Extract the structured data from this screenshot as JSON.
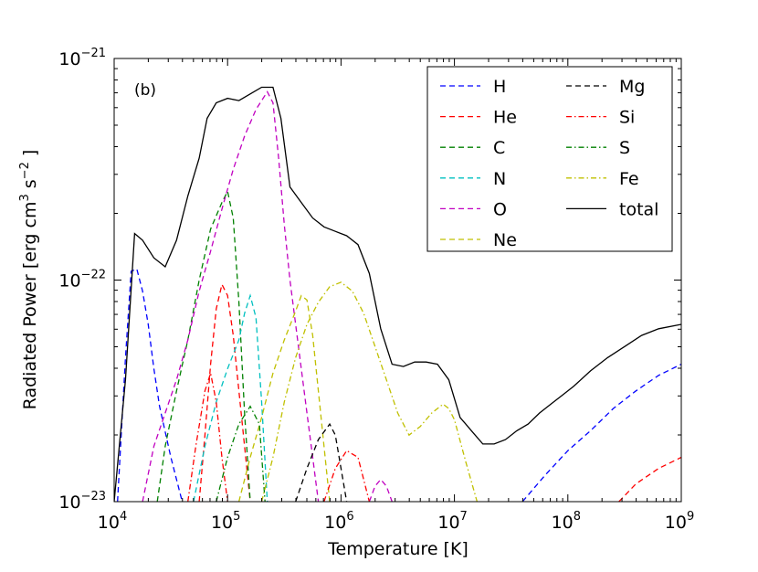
{
  "chart_data": {
    "type": "line",
    "panel_label": "(b)",
    "xlabel": "Temperature [K]",
    "ylabel": {
      "prefix": "Radiated Power [erg cm",
      "exp1": "3",
      "mid": " s",
      "exp2": "−2",
      "suffix": " ]"
    },
    "xscale": "log",
    "yscale": "log",
    "xlim": [
      10000,
      1000000000
    ],
    "ylim": [
      1e-23,
      1e-21
    ],
    "xticks": [
      {
        "base": "10",
        "exp": "4",
        "value": 10000
      },
      {
        "base": "10",
        "exp": "5",
        "value": 100000
      },
      {
        "base": "10",
        "exp": "6",
        "value": 1000000
      },
      {
        "base": "10",
        "exp": "7",
        "value": 10000000
      },
      {
        "base": "10",
        "exp": "8",
        "value": 100000000
      },
      {
        "base": "10",
        "exp": "9",
        "value": 1000000000
      }
    ],
    "yticks": [
      {
        "base": "10",
        "exp": "−23",
        "value": 1e-23
      },
      {
        "base": "10",
        "exp": "−22",
        "value": 1e-22
      },
      {
        "base": "10",
        "exp": "−21",
        "value": 1e-21
      }
    ],
    "legend_position": "top-right",
    "series": [
      {
        "name": "H",
        "color": "#0000ff",
        "style": "dashed",
        "points": [
          [
            4.03,
            -23.0
          ],
          [
            4.1,
            -22.35
          ],
          [
            4.15,
            -21.96
          ],
          [
            4.2,
            -21.95
          ],
          [
            4.25,
            -22.05
          ],
          [
            4.3,
            -22.2
          ],
          [
            4.35,
            -22.4
          ],
          [
            4.4,
            -22.57
          ],
          [
            4.5,
            -22.8
          ],
          [
            4.6,
            -23.0
          ]
        ]
      },
      {
        "name": "H",
        "color": "#0000ff",
        "style": "dashed",
        "points": [
          [
            7.6,
            -23.0
          ],
          [
            7.8,
            -22.88
          ],
          [
            8.0,
            -22.77
          ],
          [
            8.2,
            -22.68
          ],
          [
            8.4,
            -22.58
          ],
          [
            8.6,
            -22.5
          ],
          [
            8.8,
            -22.43
          ],
          [
            9.0,
            -22.38
          ]
        ]
      },
      {
        "name": "He",
        "color": "#ff0000",
        "style": "dashed",
        "points": [
          [
            4.75,
            -23.0
          ],
          [
            4.8,
            -22.7
          ],
          [
            4.85,
            -22.38
          ],
          [
            4.9,
            -22.13
          ],
          [
            4.95,
            -22.02
          ],
          [
            5.0,
            -22.07
          ],
          [
            5.05,
            -22.25
          ],
          [
            5.1,
            -22.5
          ],
          [
            5.15,
            -22.75
          ],
          [
            5.2,
            -23.0
          ]
        ]
      },
      {
        "name": "He",
        "color": "#ff0000",
        "style": "dashed",
        "points": [
          [
            8.45,
            -23.0
          ],
          [
            8.6,
            -22.92
          ],
          [
            8.8,
            -22.85
          ],
          [
            9.0,
            -22.8
          ]
        ]
      },
      {
        "name": "C",
        "color": "#008000",
        "style": "dashed",
        "points": [
          [
            4.38,
            -23.0
          ],
          [
            4.45,
            -22.75
          ],
          [
            4.55,
            -22.5
          ],
          [
            4.65,
            -22.27
          ],
          [
            4.75,
            -22.0
          ],
          [
            4.85,
            -21.77
          ],
          [
            4.95,
            -21.65
          ],
          [
            5.0,
            -21.6
          ],
          [
            5.05,
            -21.72
          ],
          [
            5.1,
            -22.1
          ],
          [
            5.15,
            -22.6
          ],
          [
            5.2,
            -23.0
          ]
        ]
      },
      {
        "name": "N",
        "color": "#00c0c0",
        "style": "dashed",
        "points": [
          [
            4.7,
            -23.0
          ],
          [
            4.8,
            -22.75
          ],
          [
            4.9,
            -22.55
          ],
          [
            5.0,
            -22.4
          ],
          [
            5.1,
            -22.27
          ],
          [
            5.15,
            -22.15
          ],
          [
            5.2,
            -22.07
          ],
          [
            5.25,
            -22.17
          ],
          [
            5.3,
            -22.55
          ],
          [
            5.35,
            -23.0
          ]
        ]
      },
      {
        "name": "O",
        "color": "#c000c0",
        "style": "dashed",
        "points": [
          [
            4.25,
            -23.0
          ],
          [
            4.35,
            -22.75
          ],
          [
            4.45,
            -22.6
          ],
          [
            4.55,
            -22.45
          ],
          [
            4.65,
            -22.27
          ],
          [
            4.75,
            -22.05
          ],
          [
            4.85,
            -21.87
          ],
          [
            4.95,
            -21.68
          ],
          [
            5.05,
            -21.5
          ],
          [
            5.15,
            -21.35
          ],
          [
            5.25,
            -21.23
          ],
          [
            5.35,
            -21.15
          ],
          [
            5.4,
            -21.2
          ],
          [
            5.45,
            -21.45
          ],
          [
            5.5,
            -21.75
          ],
          [
            5.55,
            -22.0
          ],
          [
            5.6,
            -22.2
          ],
          [
            5.65,
            -22.4
          ],
          [
            5.7,
            -22.6
          ],
          [
            5.75,
            -22.8
          ],
          [
            5.8,
            -23.0
          ]
        ]
      },
      {
        "name": "O",
        "color": "#c000c0",
        "style": "dashed",
        "points": [
          [
            6.25,
            -23.0
          ],
          [
            6.3,
            -22.93
          ],
          [
            6.35,
            -22.9
          ],
          [
            6.4,
            -22.93
          ],
          [
            6.45,
            -23.0
          ]
        ]
      },
      {
        "name": "Ne",
        "color": "#c0c000",
        "style": "dashed",
        "points": [
          [
            5.1,
            -23.0
          ],
          [
            5.2,
            -22.8
          ],
          [
            5.3,
            -22.62
          ],
          [
            5.4,
            -22.42
          ],
          [
            5.5,
            -22.27
          ],
          [
            5.6,
            -22.14
          ],
          [
            5.65,
            -22.07
          ],
          [
            5.7,
            -22.09
          ],
          [
            5.75,
            -22.25
          ],
          [
            5.8,
            -22.5
          ],
          [
            5.85,
            -22.75
          ],
          [
            5.9,
            -23.0
          ]
        ]
      },
      {
        "name": "Mg",
        "color": "#000000",
        "style": "dashed",
        "points": [
          [
            5.6,
            -23.0
          ],
          [
            5.7,
            -22.85
          ],
          [
            5.8,
            -22.72
          ],
          [
            5.9,
            -22.65
          ],
          [
            5.95,
            -22.7
          ],
          [
            6.0,
            -22.85
          ],
          [
            6.05,
            -23.0
          ]
        ]
      },
      {
        "name": "Si",
        "color": "#ff0000",
        "style": "dashdot",
        "points": [
          [
            4.65,
            -23.0
          ],
          [
            4.72,
            -22.75
          ],
          [
            4.8,
            -22.5
          ],
          [
            4.85,
            -22.42
          ],
          [
            4.9,
            -22.55
          ],
          [
            4.95,
            -22.8
          ],
          [
            5.0,
            -23.0
          ]
        ]
      },
      {
        "name": "Si",
        "color": "#ff0000",
        "style": "dashdot",
        "points": [
          [
            5.85,
            -23.0
          ],
          [
            5.95,
            -22.85
          ],
          [
            6.05,
            -22.77
          ],
          [
            6.15,
            -22.8
          ],
          [
            6.2,
            -22.9
          ],
          [
            6.25,
            -23.0
          ]
        ]
      },
      {
        "name": "S",
        "color": "#008000",
        "style": "dashdot",
        "points": [
          [
            4.9,
            -23.0
          ],
          [
            5.0,
            -22.8
          ],
          [
            5.1,
            -22.65
          ],
          [
            5.2,
            -22.57
          ],
          [
            5.28,
            -22.65
          ],
          [
            5.33,
            -23.0
          ]
        ]
      },
      {
        "name": "Fe",
        "color": "#c0c000",
        "style": "dashdot",
        "points": [
          [
            5.3,
            -23.0
          ],
          [
            5.4,
            -22.8
          ],
          [
            5.5,
            -22.55
          ],
          [
            5.6,
            -22.35
          ],
          [
            5.7,
            -22.2
          ],
          [
            5.8,
            -22.1
          ],
          [
            5.9,
            -22.03
          ],
          [
            6.0,
            -22.01
          ],
          [
            6.1,
            -22.05
          ],
          [
            6.2,
            -22.15
          ],
          [
            6.3,
            -22.3
          ],
          [
            6.4,
            -22.45
          ],
          [
            6.5,
            -22.6
          ],
          [
            6.6,
            -22.7
          ],
          [
            6.7,
            -22.66
          ],
          [
            6.8,
            -22.6
          ],
          [
            6.9,
            -22.56
          ],
          [
            6.95,
            -22.58
          ],
          [
            7.0,
            -22.63
          ],
          [
            7.1,
            -22.82
          ],
          [
            7.2,
            -23.0
          ]
        ]
      },
      {
        "name": "total",
        "color": "#000000",
        "style": "solid",
        "points": [
          [
            4.0,
            -23.0
          ],
          [
            4.1,
            -22.45
          ],
          [
            4.18,
            -21.79
          ],
          [
            4.25,
            -21.82
          ],
          [
            4.35,
            -21.9
          ],
          [
            4.45,
            -21.94
          ],
          [
            4.55,
            -21.82
          ],
          [
            4.65,
            -21.62
          ],
          [
            4.75,
            -21.45
          ],
          [
            4.82,
            -21.27
          ],
          [
            4.9,
            -21.2
          ],
          [
            5.0,
            -21.18
          ],
          [
            5.1,
            -21.19
          ],
          [
            5.2,
            -21.16
          ],
          [
            5.3,
            -21.13
          ],
          [
            5.4,
            -21.13
          ],
          [
            5.47,
            -21.27
          ],
          [
            5.55,
            -21.58
          ],
          [
            5.65,
            -21.65
          ],
          [
            5.75,
            -21.72
          ],
          [
            5.85,
            -21.76
          ],
          [
            5.95,
            -21.78
          ],
          [
            6.05,
            -21.8
          ],
          [
            6.15,
            -21.84
          ],
          [
            6.25,
            -21.97
          ],
          [
            6.35,
            -22.22
          ],
          [
            6.45,
            -22.38
          ],
          [
            6.55,
            -22.39
          ],
          [
            6.65,
            -22.37
          ],
          [
            6.75,
            -22.37
          ],
          [
            6.85,
            -22.38
          ],
          [
            6.95,
            -22.45
          ],
          [
            7.05,
            -22.62
          ],
          [
            7.15,
            -22.68
          ],
          [
            7.25,
            -22.74
          ],
          [
            7.35,
            -22.74
          ],
          [
            7.45,
            -22.72
          ],
          [
            7.55,
            -22.68
          ],
          [
            7.65,
            -22.65
          ],
          [
            7.75,
            -22.6
          ],
          [
            7.85,
            -22.56
          ],
          [
            7.95,
            -22.52
          ],
          [
            8.05,
            -22.48
          ],
          [
            8.2,
            -22.41
          ],
          [
            8.35,
            -22.35
          ],
          [
            8.5,
            -22.3
          ],
          [
            8.65,
            -22.25
          ],
          [
            8.8,
            -22.22
          ],
          [
            9.0,
            -22.2
          ]
        ]
      }
    ],
    "legend": [
      {
        "label": "H",
        "color": "#0000ff",
        "style": "dashed"
      },
      {
        "label": "He",
        "color": "#ff0000",
        "style": "dashed"
      },
      {
        "label": "C",
        "color": "#008000",
        "style": "dashed"
      },
      {
        "label": "N",
        "color": "#00c0c0",
        "style": "dashed"
      },
      {
        "label": "O",
        "color": "#c000c0",
        "style": "dashed"
      },
      {
        "label": "Ne",
        "color": "#c0c000",
        "style": "dashed"
      },
      {
        "label": "Mg",
        "color": "#000000",
        "style": "dashed"
      },
      {
        "label": "Si",
        "color": "#ff0000",
        "style": "dashdot"
      },
      {
        "label": "S",
        "color": "#008000",
        "style": "dashdot"
      },
      {
        "label": "Fe",
        "color": "#c0c000",
        "style": "dashdot"
      },
      {
        "label": "total",
        "color": "#000000",
        "style": "solid"
      }
    ]
  }
}
